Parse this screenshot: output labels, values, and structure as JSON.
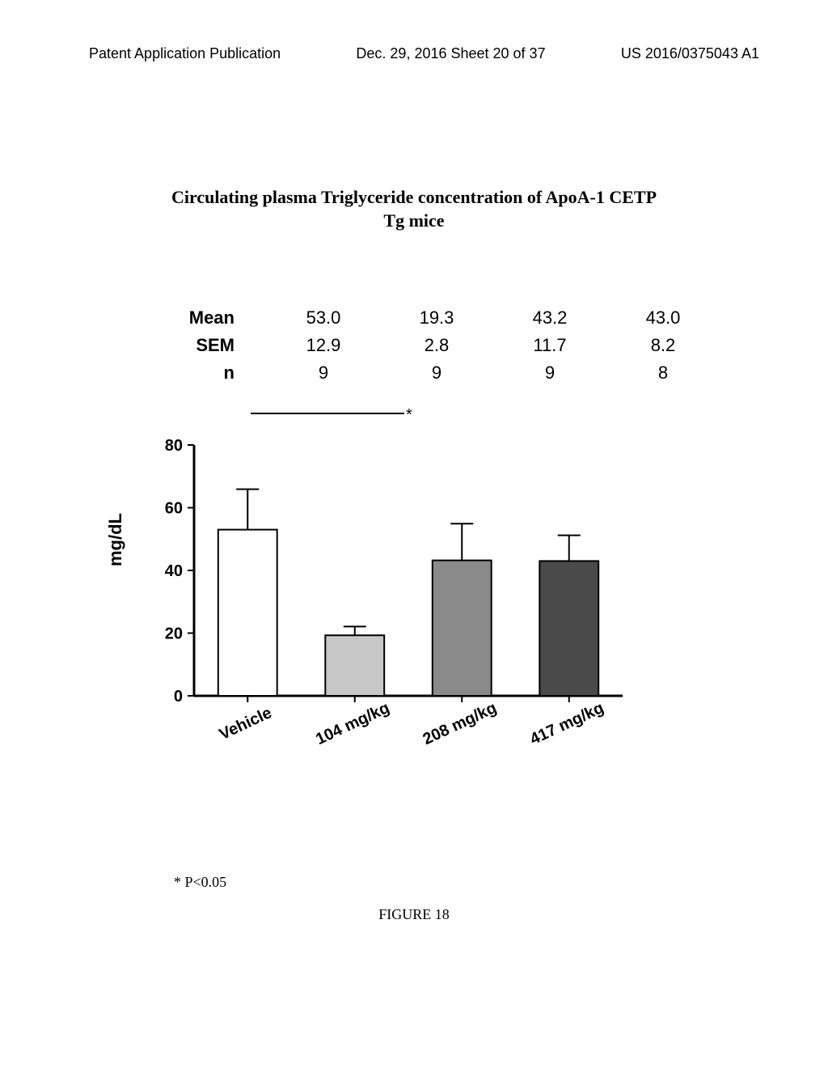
{
  "header": {
    "left": "Patent Application Publication",
    "center": "Dec. 29, 2016  Sheet 20 of 37",
    "right": "US 2016/0375043 A1"
  },
  "title_line1": "Circulating plasma Triglyceride concentration of ApoA-1 CETP",
  "title_line2": "Tg mice",
  "stats": {
    "rows": [
      {
        "label": "Mean",
        "v": [
          "53.0",
          "19.3",
          "43.2",
          "43.0"
        ]
      },
      {
        "label": "SEM",
        "v": [
          "12.9",
          "2.8",
          "11.7",
          "8.2"
        ]
      },
      {
        "label": "n",
        "v": [
          "9",
          "9",
          "9",
          "8"
        ]
      }
    ]
  },
  "chart": {
    "type": "bar",
    "ylabel": "mg/dL",
    "ylim": [
      0,
      80
    ],
    "yticks": [
      0,
      20,
      40,
      60,
      80
    ],
    "categories": [
      "Vehicle",
      "104 mg/kg",
      "208 mg/kg",
      "417 mg/kg"
    ],
    "values": [
      53.0,
      19.3,
      43.2,
      43.0
    ],
    "sem": [
      12.9,
      2.8,
      11.7,
      8.2
    ],
    "bar_colors": [
      "#ffffff",
      "#c8c8c8",
      "#8a8a8a",
      "#4a4a4a"
    ],
    "bar_border": "#000000",
    "axis_color": "#000000",
    "background": "#ffffff",
    "bar_width": 0.55,
    "tick_fontsize": 20,
    "xlabel_fontsize": 20,
    "xlabel_rotation": -25
  },
  "footnote": "* P<0.05",
  "figcaption": "FIGURE 18",
  "sig_star": "*"
}
